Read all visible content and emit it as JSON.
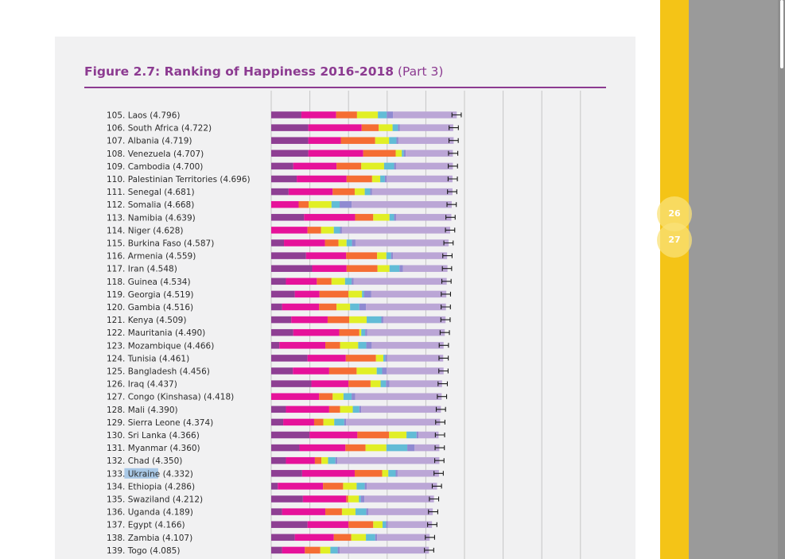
{
  "header": {
    "title": "Figure 2.7: Ranking of Happiness 2016-2018",
    "subtitle": "(Part 3)"
  },
  "pages": [
    "26",
    "27"
  ],
  "highlighted_word": "Ukraine",
  "colors": {
    "accent": "#8c3b91",
    "sidebar_yellow": "#f4c417",
    "highlight": "#a9c8e6",
    "segments": [
      "#8e3f93",
      "#e6129a",
      "#f56d33",
      "#e1ef26",
      "#62bcd6",
      "#8f8ad1",
      "#bba6d6"
    ]
  },
  "chart_data": {
    "type": "bar",
    "stacked": true,
    "orientation": "horizontal",
    "grid": true,
    "xlim": [
      0,
      8
    ],
    "categories": [
      "105. Laos (4.796)",
      "106. South Africa (4.722)",
      "107. Albania (4.719)",
      "108. Venezuela (4.707)",
      "109. Cambodia (4.700)",
      "110. Palestinian Territories (4.696)",
      "111. Senegal (4.681)",
      "112. Somalia (4.668)",
      "113. Namibia (4.639)",
      "114. Niger (4.628)",
      "115. Burkina Faso (4.587)",
      "116. Armenia (4.559)",
      "117. Iran (4.548)",
      "118. Guinea (4.534)",
      "119. Georgia (4.519)",
      "120. Gambia (4.516)",
      "121. Kenya (4.509)",
      "122. Mauritania (4.490)",
      "123. Mozambique (4.466)",
      "124. Tunisia (4.461)",
      "125. Bangladesh (4.456)",
      "126. Iraq (4.437)",
      "127. Congo (Kinshasa) (4.418)",
      "128. Mali (4.390)",
      "129. Sierra Leone (4.374)",
      "130. Sri Lanka (4.366)",
      "131. Myanmar (4.360)",
      "132. Chad (4.350)",
      "133. Ukraine (4.332)",
      "134. Ethiopia (4.286)",
      "135. Swaziland (4.212)",
      "136. Uganda (4.189)",
      "137. Egypt (4.166)",
      "138. Zambia (4.107)",
      "139. Togo (4.085)"
    ],
    "totals": [
      4.796,
      4.722,
      4.719,
      4.707,
      4.7,
      4.696,
      4.681,
      4.668,
      4.639,
      4.628,
      4.587,
      4.559,
      4.548,
      4.534,
      4.519,
      4.516,
      4.509,
      4.49,
      4.466,
      4.461,
      4.456,
      4.437,
      4.418,
      4.39,
      4.374,
      4.366,
      4.36,
      4.35,
      4.332,
      4.286,
      4.212,
      4.189,
      4.166,
      4.107,
      4.085
    ],
    "segments": [
      [
        0.78,
        0.9,
        0.54,
        0.54,
        0.23,
        0.16,
        1.65
      ],
      [
        0.96,
        1.38,
        0.44,
        0.36,
        0.14,
        0.05,
        1.38
      ],
      [
        0.96,
        0.84,
        0.89,
        0.36,
        0.19,
        0.05,
        1.43
      ],
      [
        0.96,
        1.42,
        0.84,
        0.16,
        0.05,
        0.05,
        1.22
      ],
      [
        0.57,
        1.12,
        0.64,
        0.59,
        0.26,
        0.05,
        1.47
      ],
      [
        0.66,
        1.29,
        0.66,
        0.21,
        0.12,
        0.05,
        1.7
      ],
      [
        0.45,
        1.14,
        0.57,
        0.26,
        0.14,
        0.05,
        2.08
      ],
      [
        0.0,
        0.71,
        0.26,
        0.59,
        0.21,
        0.31,
        2.59
      ],
      [
        0.85,
        1.32,
        0.47,
        0.42,
        0.12,
        0.05,
        1.43
      ],
      [
        0.0,
        0.94,
        0.35,
        0.33,
        0.16,
        0.05,
        2.8
      ],
      [
        0.33,
        1.06,
        0.35,
        0.21,
        0.14,
        0.09,
        2.41
      ],
      [
        0.9,
        1.04,
        0.8,
        0.24,
        0.12,
        0.05,
        1.4
      ],
      [
        1.06,
        0.89,
        0.8,
        0.31,
        0.26,
        0.09,
        1.15
      ],
      [
        0.38,
        0.8,
        0.38,
        0.35,
        0.17,
        0.05,
        2.41
      ],
      [
        0.61,
        0.64,
        0.75,
        0.35,
        0.05,
        0.19,
        1.94
      ],
      [
        0.28,
        0.96,
        0.45,
        0.35,
        0.24,
        0.17,
        2.07
      ],
      [
        0.52,
        0.94,
        0.56,
        0.45,
        0.38,
        0.05,
        1.61
      ],
      [
        0.57,
        1.19,
        0.52,
        0.05,
        0.1,
        0.05,
        2.01
      ],
      [
        0.21,
        1.19,
        0.38,
        0.47,
        0.21,
        0.14,
        1.86
      ],
      [
        0.94,
        0.99,
        0.78,
        0.19,
        0.05,
        0.05,
        1.45
      ],
      [
        0.56,
        0.94,
        0.71,
        0.52,
        0.14,
        0.12,
        1.47
      ],
      [
        1.04,
        0.96,
        0.57,
        0.26,
        0.14,
        0.09,
        1.36
      ],
      [
        0.0,
        1.24,
        0.35,
        0.28,
        0.21,
        0.09,
        2.24
      ],
      [
        0.38,
        1.12,
        0.28,
        0.33,
        0.17,
        0.05,
        2.06
      ],
      [
        0.31,
        0.8,
        0.24,
        0.28,
        0.26,
        0.05,
        2.43
      ],
      [
        0.99,
        1.24,
        0.82,
        0.45,
        0.26,
        0.05,
        0.52
      ],
      [
        0.73,
        1.19,
        0.52,
        0.54,
        0.54,
        0.19,
        0.64
      ],
      [
        0.38,
        0.75,
        0.17,
        0.17,
        0.19,
        0.05,
        2.64
      ],
      [
        0.8,
        1.36,
        0.71,
        0.16,
        0.19,
        0.05,
        1.07
      ],
      [
        0.17,
        1.17,
        0.52,
        0.35,
        0.21,
        0.05,
        1.82
      ],
      [
        0.82,
        1.12,
        0.05,
        0.28,
        0.05,
        0.09,
        1.8
      ],
      [
        0.28,
        1.12,
        0.43,
        0.35,
        0.28,
        0.05,
        1.67
      ],
      [
        0.94,
        1.06,
        0.64,
        0.24,
        0.09,
        0.05,
        1.14
      ],
      [
        0.61,
        1.01,
        0.45,
        0.38,
        0.24,
        0.05,
        1.36
      ],
      [
        0.28,
        0.59,
        0.4,
        0.26,
        0.19,
        0.05,
        2.31
      ]
    ],
    "ci_halfwidth": 0.12
  }
}
